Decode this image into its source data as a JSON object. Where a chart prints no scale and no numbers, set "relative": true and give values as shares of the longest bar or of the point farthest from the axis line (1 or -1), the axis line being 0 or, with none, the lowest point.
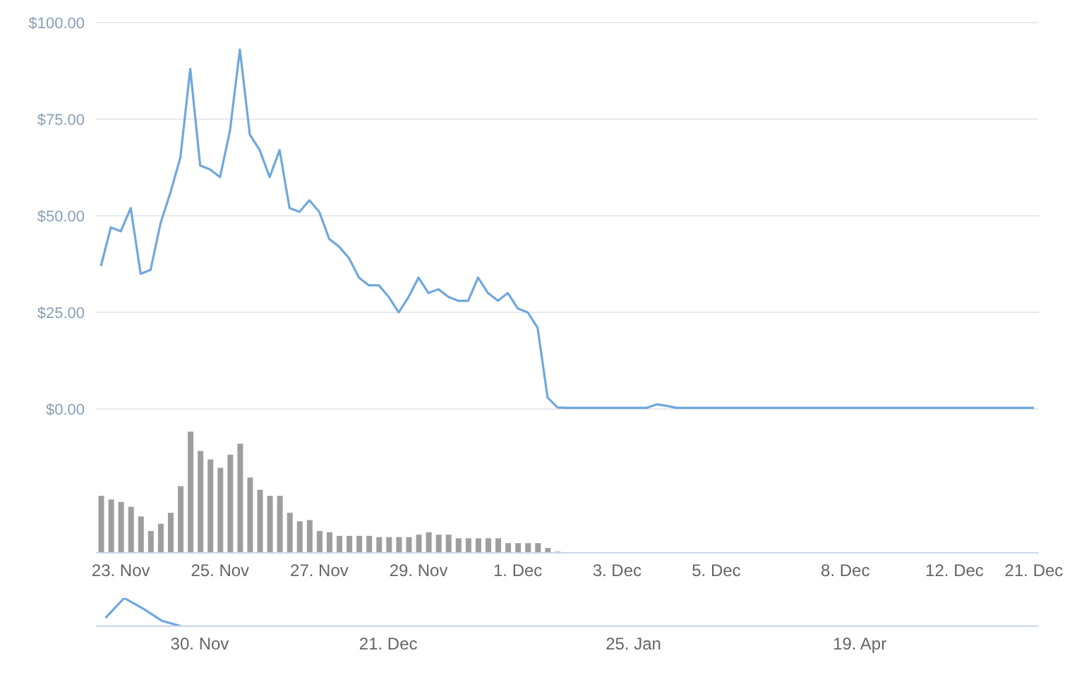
{
  "chart_data": [
    {
      "type": "line",
      "color": "#6fa8dc",
      "grid": "y",
      "tick_labels": "y",
      "ylim": [
        0,
        100
      ],
      "yticks": [
        {
          "value": 0,
          "label": "$0.00"
        },
        {
          "value": 25,
          "label": "$25.00"
        },
        {
          "value": 50,
          "label": "$50.00"
        },
        {
          "value": 75,
          "label": "$75.00"
        },
        {
          "value": 100,
          "label": "$100.00"
        }
      ],
      "categories": [
        null,
        null,
        null,
        null,
        null,
        null,
        null,
        null,
        null,
        null,
        null,
        null,
        null,
        null,
        null,
        null,
        null,
        null,
        null,
        null,
        null,
        null,
        null,
        null,
        null,
        null,
        null,
        null,
        null,
        null,
        null,
        null,
        null,
        null,
        null,
        null,
        null,
        null,
        null,
        null,
        null,
        null,
        null,
        null,
        null,
        null,
        null,
        null,
        null,
        null,
        null,
        null,
        null,
        null,
        null,
        null,
        null,
        null,
        null,
        null,
        null,
        null,
        null,
        null,
        null,
        null,
        null,
        null,
        null,
        null,
        null,
        null,
        null,
        null,
        null,
        null,
        null,
        null,
        null,
        null,
        null,
        null,
        null,
        null,
        null,
        null,
        null,
        null,
        null,
        null,
        null,
        null,
        null,
        null,
        null
      ],
      "values": [
        37,
        47,
        46,
        52,
        35,
        36,
        48,
        56,
        65,
        88,
        63,
        62,
        60,
        72,
        93,
        71,
        67,
        60,
        67,
        52,
        51,
        54,
        51,
        44,
        42,
        39,
        34,
        32,
        32,
        29,
        25,
        29,
        34,
        30,
        31,
        29,
        28,
        28,
        34,
        30,
        28,
        30,
        26,
        25,
        21,
        3,
        0.4,
        0.3,
        0.3,
        0.3,
        0.3,
        0.3,
        0.3,
        0.3,
        0.3,
        0.3,
        1.2,
        0.8,
        0.3,
        0.3,
        0.3,
        0.3,
        0.3,
        0.3,
        0.3,
        0.3,
        0.3,
        0.3,
        0.3,
        0.3,
        0.3,
        0.3,
        0.3,
        0.3,
        0.3,
        0.3,
        0.3,
        0.3,
        0.3,
        0.3,
        0.3,
        0.3,
        0.3,
        0.3,
        0.3,
        0.3,
        0.3,
        0.3,
        0.3,
        0.3,
        0.3,
        0.3,
        0.3,
        0.3,
        0.3
      ]
    },
    {
      "type": "bar",
      "color": "#9e9e9e",
      "relative": true,
      "tick_labels": "x",
      "categories": [
        null,
        null,
        "23. Nov",
        null,
        null,
        null,
        null,
        null,
        null,
        null,
        null,
        null,
        "25. Nov",
        null,
        null,
        null,
        null,
        null,
        null,
        null,
        null,
        null,
        "27. Nov",
        null,
        null,
        null,
        null,
        null,
        null,
        null,
        null,
        null,
        "29. Nov",
        null,
        null,
        null,
        null,
        null,
        null,
        null,
        null,
        null,
        "1. Dec",
        null,
        null,
        null,
        null,
        null,
        null,
        null,
        null,
        null,
        "3. Dec",
        null,
        null,
        null,
        null,
        null,
        null,
        null,
        null,
        null,
        "5. Dec",
        null,
        null,
        null,
        null,
        null,
        null,
        null,
        null,
        null,
        null,
        null,
        null,
        "8. Dec",
        null,
        null,
        null,
        null,
        null,
        null,
        null,
        null,
        null,
        null,
        "12. Dec",
        null,
        null,
        null,
        null,
        null,
        null,
        null,
        "21. Dec"
      ],
      "values": [
        0.47,
        0.44,
        0.42,
        0.38,
        0.3,
        0.18,
        0.24,
        0.33,
        0.55,
        1,
        0.84,
        0.77,
        0.7,
        0.81,
        0.9,
        0.62,
        0.52,
        0.47,
        0.47,
        0.33,
        0.26,
        0.27,
        0.18,
        0.17,
        0.14,
        0.14,
        0.14,
        0.14,
        0.13,
        0.13,
        0.13,
        0.13,
        0.15,
        0.17,
        0.15,
        0.15,
        0.12,
        0.12,
        0.12,
        0.12,
        0.12,
        0.08,
        0.08,
        0.08,
        0.08,
        0.04,
        0.01,
        null,
        null,
        null,
        null,
        null,
        null,
        null,
        null,
        null,
        null,
        null,
        null,
        null,
        null,
        null,
        null,
        null,
        null,
        null,
        null,
        null,
        null,
        null,
        null,
        null,
        null,
        null,
        null,
        null,
        null,
        null,
        null,
        null,
        null,
        null,
        null,
        null,
        null,
        null,
        null,
        null,
        null,
        null,
        null,
        null,
        null,
        null,
        null
      ]
    },
    {
      "type": "line",
      "color": "#6fa8dc",
      "relative": true,
      "tick_labels": "x",
      "categories": [
        null,
        null,
        null,
        null,
        null,
        "30. Nov",
        null,
        null,
        null,
        null,
        null,
        null,
        null,
        null,
        null,
        "21. Dec",
        null,
        null,
        null,
        null,
        null,
        null,
        null,
        null,
        null,
        null,
        null,
        null,
        "25. Jan",
        null,
        null,
        null,
        null,
        null,
        null,
        null,
        null,
        null,
        null,
        null,
        "19. Apr",
        null,
        null,
        null,
        null,
        null,
        null,
        null,
        null,
        null
      ],
      "values": [
        0.29,
        1,
        0.62,
        0.19,
        0,
        null,
        null,
        null,
        null,
        null,
        null,
        null,
        null,
        null,
        null,
        null,
        null,
        null,
        null,
        null,
        null,
        null,
        null,
        null,
        null,
        null,
        null,
        null,
        null,
        null,
        null,
        null,
        null,
        null,
        null,
        null,
        null,
        null,
        null,
        null,
        null,
        null,
        null,
        null,
        null,
        null,
        null,
        null,
        null,
        null
      ]
    }
  ]
}
